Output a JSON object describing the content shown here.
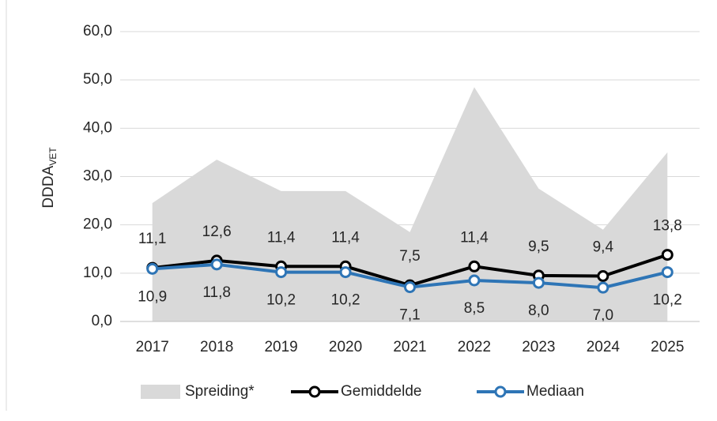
{
  "chart_data": {
    "type": "line",
    "y_label": "DDDA",
    "y_label_sub": "VET",
    "categories": [
      "2017",
      "2018",
      "2019",
      "2020",
      "2021",
      "2022",
      "2023",
      "2024",
      "2025"
    ],
    "series": [
      {
        "name": "Spreiding*",
        "kind": "area",
        "color": "#d9d9d9",
        "values": [
          24.5,
          33.5,
          27,
          27,
          18.5,
          48.5,
          27.5,
          19,
          35
        ]
      },
      {
        "name": "Gemiddelde",
        "kind": "line",
        "color": "#000000",
        "values": [
          11.1,
          12.6,
          11.4,
          11.4,
          7.5,
          11.4,
          9.5,
          9.4,
          13.8
        ],
        "value_labels": [
          "11,1",
          "12,6",
          "11,4",
          "11,4",
          "7,5",
          "11,4",
          "9,5",
          "9,4",
          "13,8"
        ],
        "label_position": "above"
      },
      {
        "name": "Mediaan",
        "kind": "line",
        "color": "#2e75b6",
        "values": [
          10.9,
          11.8,
          10.2,
          10.2,
          7.1,
          8.5,
          8.0,
          7.0,
          10.2
        ],
        "value_labels": [
          "10,9",
          "11,8",
          "10,2",
          "10,2",
          "7,1",
          "8,5",
          "8,0",
          "7,0",
          "10,2"
        ],
        "label_position": "below"
      }
    ],
    "ylim": [
      0,
      60
    ],
    "yticks": [
      {
        "value": 0,
        "label": "0,0"
      },
      {
        "value": 10,
        "label": "10,0"
      },
      {
        "value": 20,
        "label": "20,0"
      },
      {
        "value": 30,
        "label": "30,0"
      },
      {
        "value": 40,
        "label": "40,0"
      },
      {
        "value": 50,
        "label": "50,0"
      },
      {
        "value": 60,
        "label": "60,0"
      }
    ],
    "grid": true,
    "legend": "bottom"
  }
}
